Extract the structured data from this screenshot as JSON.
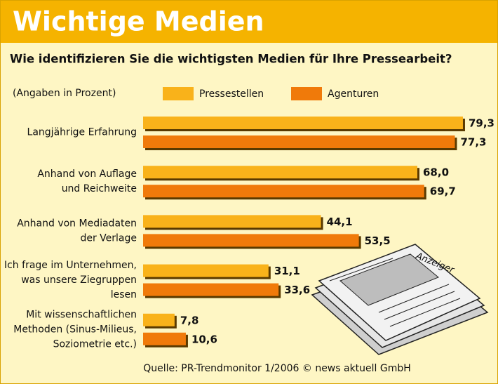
{
  "chart_data": {
    "type": "bar",
    "orientation": "horizontal",
    "title": "Wichtige Medien",
    "subtitle": "Wie identifizieren Sie die wichtigsten Medien für Ihre Pressearbeit?",
    "unit_note": "(Angaben in Prozent)",
    "categories": [
      "Langjährige Erfahrung",
      "Anhand von Auflage\nund Reichweite",
      "Anhand von Mediadaten\nder Verlage",
      "Ich frage im Unternehmen,\nwas unsere Ziegruppen\nlesen",
      "Mit wissenschaftlichen\nMethoden (Sinus-Milieus,\nSoziometrie etc.)"
    ],
    "series": [
      {
        "name": "Pressestellen",
        "color": "#f9b21a",
        "values": [
          79.3,
          68.0,
          44.1,
          31.1,
          7.8
        ],
        "value_labels": [
          "79,3",
          "68,0",
          "44,1",
          "31,1",
          "7,8"
        ]
      },
      {
        "name": "Agenturen",
        "color": "#f07a0a",
        "values": [
          77.3,
          69.7,
          53.5,
          33.6,
          10.6
        ],
        "value_labels": [
          "77,3",
          "69,7",
          "53,5",
          "33,6",
          "10,6"
        ]
      }
    ],
    "illustration_text": "Anzeiger",
    "source": "Quelle: PR-Trendmonitor 1/2006 © news aktuell GmbH"
  }
}
